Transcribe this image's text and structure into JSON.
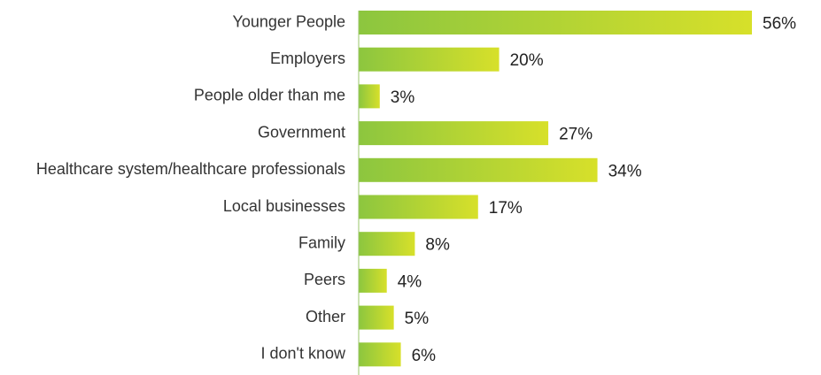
{
  "chart_data": {
    "type": "bar",
    "orientation": "horizontal",
    "categories": [
      "Younger People",
      "Employers",
      "People older than me",
      "Government",
      "Healthcare system/healthcare professionals",
      "Local businesses",
      "Family",
      "Peers",
      "Other",
      "I don't know"
    ],
    "values": [
      56,
      20,
      3,
      27,
      34,
      17,
      8,
      4,
      5,
      6
    ],
    "value_labels": [
      "56%",
      "20%",
      "3%",
      "27%",
      "34%",
      "17%",
      "8%",
      "4%",
      "5%",
      "6%"
    ],
    "unit": "%",
    "xlim": [
      0,
      56
    ],
    "grid": false,
    "legend": "none",
    "colors": {
      "bar_gradient_start": "#8cc63f",
      "bar_gradient_end": "#d7e02a",
      "axis_line": "#99c46a"
    }
  }
}
